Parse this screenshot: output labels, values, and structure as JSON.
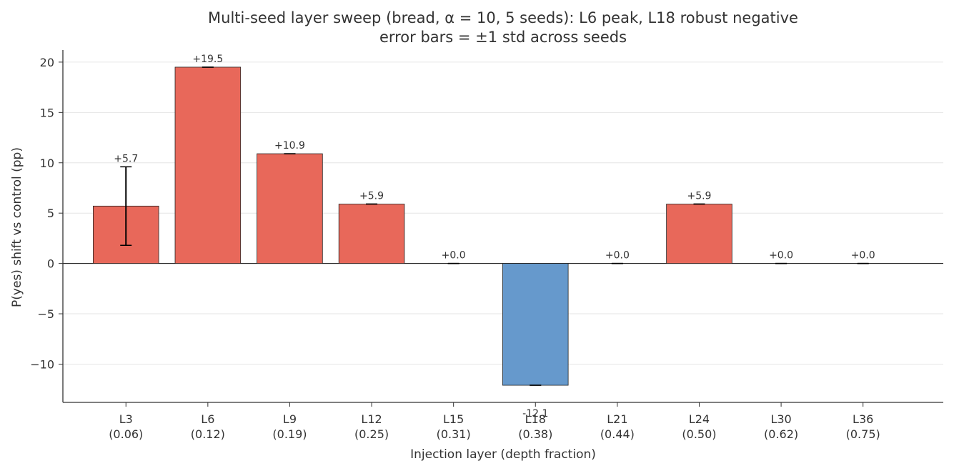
{
  "chart_data": {
    "type": "bar",
    "title": "Multi-seed layer sweep (bread, α = 10, 5 seeds): L6 peak, L18 robust negative",
    "subtitle": "error bars = ±1 std across seeds",
    "xlabel": "Injection layer (depth fraction)",
    "ylabel": "P(yes) shift vs control (pp)",
    "ylim": [
      -13.8,
      21.2
    ],
    "yticks": [
      -10,
      -5,
      0,
      5,
      10,
      15,
      20
    ],
    "ytick_labels": [
      "−10",
      "−5",
      "0",
      "5",
      "10",
      "15",
      "20"
    ],
    "grid": "y",
    "categories": [
      "L3",
      "L6",
      "L9",
      "L12",
      "L15",
      "L18",
      "L21",
      "L24",
      "L30",
      "L36"
    ],
    "depth_fractions": [
      "(0.06)",
      "(0.12)",
      "(0.19)",
      "(0.25)",
      "(0.31)",
      "(0.38)",
      "(0.44)",
      "(0.50)",
      "(0.62)",
      "(0.75)"
    ],
    "values": [
      5.7,
      19.5,
      10.9,
      5.9,
      0.0,
      -12.1,
      0.0,
      5.9,
      0.0,
      0.0
    ],
    "errors": [
      3.9,
      0.0,
      0.0,
      0.0,
      0.0,
      0.0,
      0.0,
      0.0,
      0.0,
      0.0
    ],
    "value_labels": [
      "+5.7",
      "+19.5",
      "+10.9",
      "+5.9",
      "+0.0",
      "-12.1",
      "+0.0",
      "+5.9",
      "+0.0",
      "+0.0"
    ],
    "colors": {
      "positive": "#E8685A",
      "negative": "#6699CC",
      "edge": "#222222"
    }
  }
}
